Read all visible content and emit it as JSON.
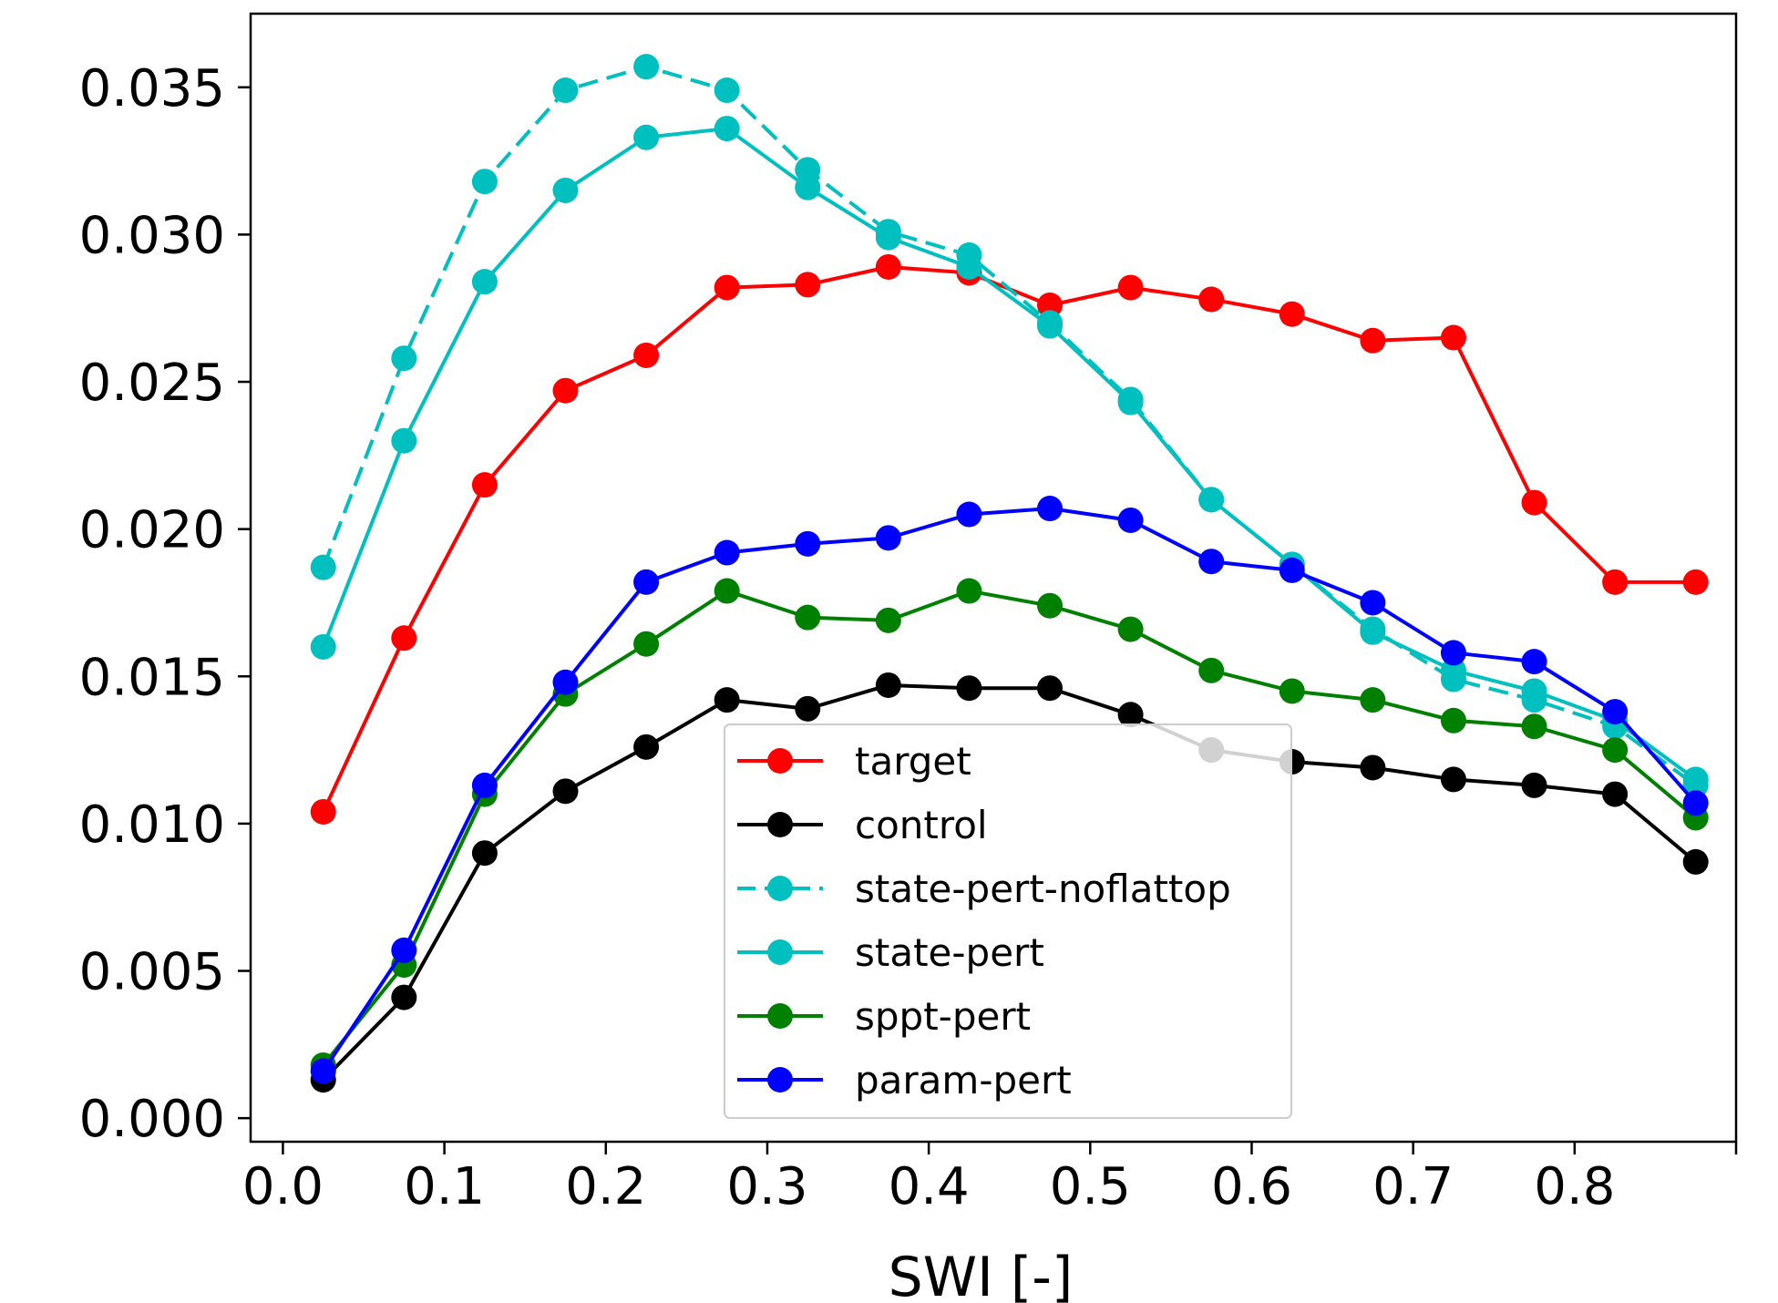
{
  "chart_data": {
    "type": "line",
    "xlabel": "SWI [-]",
    "ylabel": "",
    "xlim": [
      -0.02,
      0.9
    ],
    "ylim": [
      -0.0008,
      0.0375
    ],
    "xticks": [
      "0.0",
      "0.1",
      "0.2",
      "0.3",
      "0.4",
      "0.5",
      "0.6",
      "0.7",
      "0.8"
    ],
    "yticks": [
      "0.000",
      "0.005",
      "0.010",
      "0.015",
      "0.020",
      "0.025",
      "0.030",
      "0.035"
    ],
    "x": [
      0.025,
      0.075,
      0.125,
      0.175,
      0.225,
      0.275,
      0.325,
      0.375,
      0.425,
      0.475,
      0.525,
      0.575,
      0.625,
      0.675,
      0.725,
      0.775,
      0.825,
      0.875
    ],
    "legend": {
      "position": "lower-center"
    },
    "grid": false,
    "series": [
      {
        "name": "target",
        "color": "#ff0000",
        "dashed": false,
        "values": [
          0.0104,
          0.0163,
          0.0215,
          0.0247,
          0.0259,
          0.0282,
          0.0283,
          0.0289,
          0.0287,
          0.0276,
          0.0282,
          0.0278,
          0.0273,
          0.0264,
          0.0265,
          0.0209,
          0.0182,
          0.0182
        ]
      },
      {
        "name": "control",
        "color": "#000000",
        "dashed": false,
        "values": [
          0.0013,
          0.0041,
          0.009,
          0.0111,
          0.0126,
          0.0142,
          0.0139,
          0.0147,
          0.0146,
          0.0146,
          0.0137,
          0.0125,
          0.0121,
          0.0119,
          0.0115,
          0.0113,
          0.011,
          0.0087
        ]
      },
      {
        "name": "state-pert-noflattop",
        "color": "#00bfbf",
        "dashed": true,
        "values": [
          0.0187,
          0.0258,
          0.0318,
          0.0349,
          0.0357,
          0.0349,
          0.0322,
          0.0301,
          0.0293,
          0.027,
          0.0244,
          0.021,
          0.0188,
          0.0166,
          0.0149,
          0.0142,
          0.0133,
          0.0113
        ]
      },
      {
        "name": "state-pert",
        "color": "#00bfbf",
        "dashed": false,
        "values": [
          0.016,
          0.023,
          0.0284,
          0.0315,
          0.0333,
          0.0336,
          0.0316,
          0.0299,
          0.0289,
          0.0269,
          0.0243,
          0.021,
          0.0188,
          0.0165,
          0.0152,
          0.0145,
          0.0135,
          0.0115
        ]
      },
      {
        "name": "sppt-pert",
        "color": "#008000",
        "dashed": false,
        "values": [
          0.0018,
          0.0052,
          0.011,
          0.0144,
          0.0161,
          0.0179,
          0.017,
          0.0169,
          0.0179,
          0.0174,
          0.0166,
          0.0152,
          0.0145,
          0.0142,
          0.0135,
          0.0133,
          0.0125,
          0.0102
        ]
      },
      {
        "name": "param-pert",
        "color": "#0000ff",
        "dashed": false,
        "values": [
          0.0016,
          0.0057,
          0.0113,
          0.0148,
          0.0182,
          0.0192,
          0.0195,
          0.0197,
          0.0205,
          0.0207,
          0.0203,
          0.0189,
          0.0186,
          0.0175,
          0.0158,
          0.0155,
          0.0138,
          0.0107
        ]
      }
    ]
  }
}
